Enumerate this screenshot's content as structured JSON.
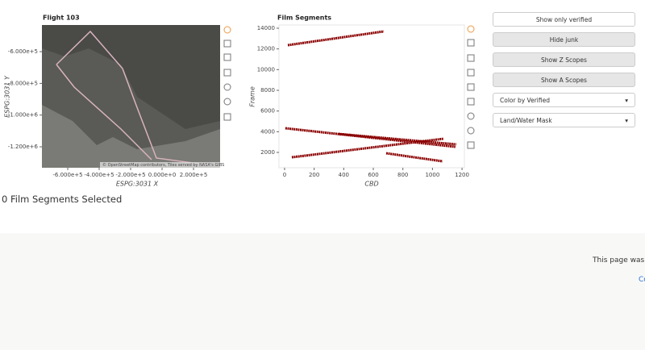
{
  "map_plot": {
    "title": "Flight 103",
    "x_label": "ESPG:3031 X",
    "y_label": "ESPG:3031 Y",
    "xlim": [
      -764000,
      369000
    ],
    "ylim": [
      -1332000,
      -432000
    ],
    "xticks": [
      {
        "value": -600000,
        "label": "-6.000e+5"
      },
      {
        "value": -400000,
        "label": "-4.000e+5"
      },
      {
        "value": -200000,
        "label": "-2.000e+5"
      },
      {
        "value": 0,
        "label": "0.000e+0"
      },
      {
        "value": 200000,
        "label": "2.000e+5"
      }
    ],
    "yticks": [
      {
        "value": -600000,
        "label": "-6.000e+5"
      },
      {
        "value": -800000,
        "label": "-8.000e+5"
      },
      {
        "value": -1000000,
        "label": "-1.000e+6"
      },
      {
        "value": -1200000,
        "label": "-1.200e+6"
      }
    ],
    "attribution": "© OpenStreetMap contributors, Tiles served by NASA's GIBS"
  },
  "segments_plot": {
    "title": "Film Segments",
    "x_label": "CBD",
    "y_label": "Frame",
    "xlim": [
      -38,
      1216
    ],
    "ylim": [
      520,
      14310
    ],
    "xticks": [
      0,
      200,
      400,
      600,
      800,
      1000,
      1200
    ],
    "yticks": [
      2000,
      4000,
      6000,
      8000,
      10000,
      12000,
      14000
    ],
    "segments": [
      {
        "x": [
          22,
          670
        ],
        "y": [
          12363,
          13690
        ]
      },
      {
        "x": [
          5,
          1155
        ],
        "y": [
          4335,
          2540
        ]
      },
      {
        "x": [
          49,
          1073
        ],
        "y": [
          1530,
          3320
        ]
      },
      {
        "x": [
          687,
          1068
        ],
        "y": [
          1920,
          1140
        ]
      },
      {
        "x": [
          365,
          1160
        ],
        "y": [
          3790,
          2780
        ]
      }
    ]
  },
  "buttons": [
    "Show only verified",
    "Hide junk",
    "Show Z Scopes",
    "Show A Scopes"
  ],
  "selects": [
    "Color by Verified",
    "Land/Water Mask"
  ],
  "status": "0 Film Segments Selected",
  "footer": {
    "text": "This page was g",
    "link": "Co"
  }
}
